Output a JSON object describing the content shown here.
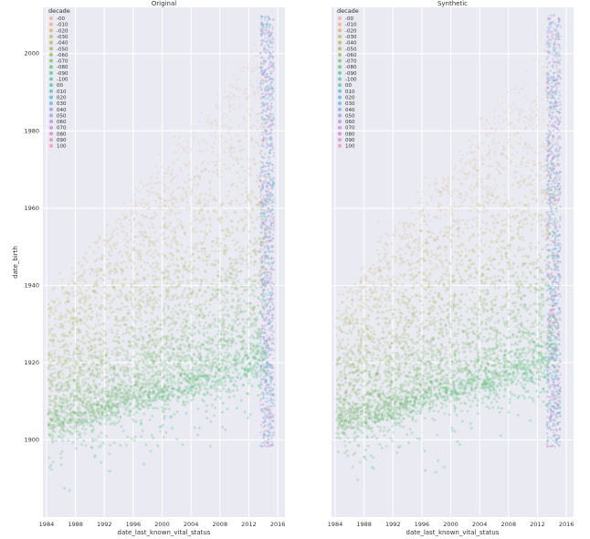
{
  "chart_data": [
    {
      "type": "scatter",
      "title": "Original",
      "xlabel": "date_last_known_vital_status",
      "ylabel": "date_birth",
      "xlim": [
        1983.5,
        2017.0
      ],
      "ylim": [
        1880,
        2012
      ],
      "xticks": [
        1984,
        1988,
        1992,
        1996,
        2000,
        2004,
        2008,
        2012,
        2016
      ],
      "yticks": [
        1900,
        1920,
        1940,
        1960,
        1980,
        2000
      ],
      "grid": true,
      "legend_position": "top-left",
      "legend_title": "decade",
      "legend_entries": [
        "-00",
        "-010",
        "-020",
        "-030",
        "-040",
        "-050",
        "-060",
        "-070",
        "-080",
        "-090",
        "-100",
        "00",
        "010",
        "020",
        "030",
        "040",
        "050",
        "060",
        "070",
        "080",
        "090",
        "100"
      ],
      "legend_colors": [
        "#f3a9a3",
        "#efae8b",
        "#e1b073",
        "#d0b563",
        "#bfb65f",
        "#aab85a",
        "#97bc5f",
        "#82c169",
        "#68c479",
        "#5ec48f",
        "#5bc4a4",
        "#5cc2b7",
        "#5cbec9",
        "#5db7d8",
        "#73add9",
        "#8fa4dc",
        "#a59bdc",
        "#b896d8",
        "#c98fd3",
        "#d888c8",
        "#e58bbb",
        "#ed95b0"
      ]
    },
    {
      "type": "scatter",
      "title": "Synthetic",
      "xlabel": "date_last_known_vital_status",
      "ylabel": "",
      "xlim": [
        1983.5,
        2017.0
      ],
      "ylim": [
        1880,
        2012
      ],
      "xticks": [
        1984,
        1988,
        1992,
        1996,
        2000,
        2004,
        2008,
        2012,
        2016
      ],
      "yticks": [],
      "grid": true,
      "legend_position": "top-left",
      "legend_title": "decade",
      "legend_entries": [
        "-00",
        "-010",
        "-020",
        "-030",
        "-040",
        "-050",
        "-060",
        "-070",
        "-080",
        "-090",
        "-100",
        "00",
        "010",
        "020",
        "030",
        "040",
        "050",
        "060",
        "070",
        "080",
        "090",
        "100"
      ],
      "legend_colors": [
        "#f3a9a3",
        "#efae8b",
        "#e1b073",
        "#d0b563",
        "#bfb65f",
        "#aab85a",
        "#97bc5f",
        "#82c169",
        "#68c479",
        "#5ec48f",
        "#5bc4a4",
        "#5cc2b7",
        "#5cbec9",
        "#5db7d8",
        "#73add9",
        "#8fa4dc",
        "#a59bdc",
        "#b896d8",
        "#c98fd3",
        "#d888c8",
        "#e58bbb",
        "#ed95b0"
      ]
    }
  ]
}
